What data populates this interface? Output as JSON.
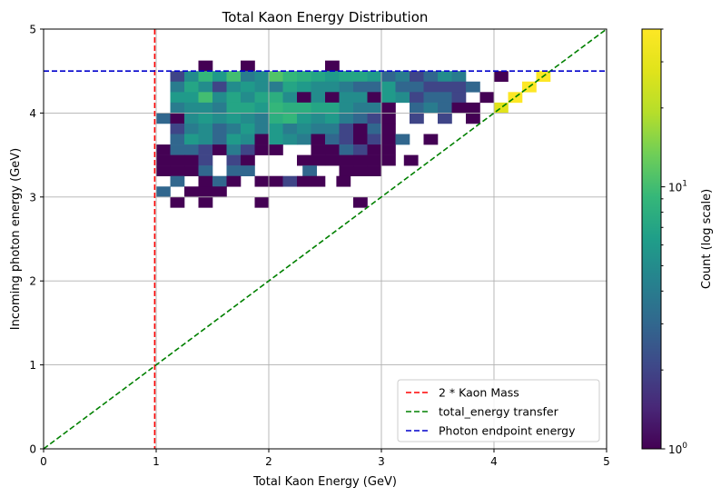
{
  "chart_data": {
    "type": "heatmap",
    "title": "Total Kaon Energy Distribution",
    "xlabel": "Total Kaon Energy (GeV)",
    "ylabel": "Incoming photon energy (GeV)",
    "xlim": [
      0,
      5
    ],
    "ylim": [
      0,
      5
    ],
    "xticks": [
      "0",
      "1",
      "2",
      "3",
      "4",
      "5"
    ],
    "yticks": [
      "0",
      "1",
      "2",
      "3",
      "4",
      "5"
    ],
    "grid": true,
    "bin_size": 0.125,
    "colorbar": {
      "label": "Count (log scale)",
      "scale": "log",
      "range": [
        1,
        40
      ],
      "tick_labels": [
        {
          "base": "10",
          "exp": "0",
          "value": 1
        },
        {
          "base": "10",
          "exp": "1",
          "value": 10
        }
      ],
      "colormap": "viridis"
    },
    "reference_lines": [
      {
        "label": "2 * Kaon Mass",
        "kind": "vertical",
        "x": 0.987,
        "color": "#ff0000",
        "style": "dashed"
      },
      {
        "label": "total_energy transfer",
        "kind": "diagonal",
        "from": [
          0,
          0
        ],
        "to": [
          5,
          5
        ],
        "color": "#008000",
        "style": "dashed"
      },
      {
        "label": "Photon endpoint energy",
        "kind": "horizontal",
        "y": 4.5,
        "color": "#0000cc",
        "style": "dashed"
      }
    ],
    "legend": {
      "position": "lower right"
    },
    "rows": [
      {
        "y": 4.5625,
        "cells": [
          [
            1.4375,
            1
          ],
          [
            1.8125,
            1
          ],
          [
            2.5625,
            1
          ]
        ]
      },
      {
        "y": 4.4375,
        "cells": [
          [
            1.1875,
            2
          ],
          [
            1.3125,
            5
          ],
          [
            1.4375,
            9
          ],
          [
            1.5625,
            6
          ],
          [
            1.6875,
            10
          ],
          [
            1.8125,
            4
          ],
          [
            1.9375,
            5
          ],
          [
            2.0625,
            11
          ],
          [
            2.1875,
            9
          ],
          [
            2.3125,
            8
          ],
          [
            2.4375,
            7
          ],
          [
            2.5625,
            6
          ],
          [
            2.6875,
            7
          ],
          [
            2.8125,
            7
          ],
          [
            2.9375,
            6
          ],
          [
            3.0625,
            3
          ],
          [
            3.1875,
            4
          ],
          [
            3.3125,
            2
          ],
          [
            3.4375,
            3
          ],
          [
            3.5625,
            5
          ],
          [
            3.6875,
            4
          ],
          [
            4.0625,
            1
          ],
          [
            4.4375,
            40
          ]
        ]
      },
      {
        "y": 4.3125,
        "cells": [
          [
            1.1875,
            4
          ],
          [
            1.3125,
            7
          ],
          [
            1.4375,
            5
          ],
          [
            1.5625,
            2
          ],
          [
            1.6875,
            5
          ],
          [
            1.8125,
            6
          ],
          [
            1.9375,
            5
          ],
          [
            2.0625,
            4
          ],
          [
            2.1875,
            7
          ],
          [
            2.3125,
            6
          ],
          [
            2.4375,
            5
          ],
          [
            2.5625,
            5
          ],
          [
            2.6875,
            4
          ],
          [
            2.8125,
            3
          ],
          [
            2.9375,
            3
          ],
          [
            3.0625,
            6
          ],
          [
            3.1875,
            3
          ],
          [
            3.3125,
            3
          ],
          [
            3.4375,
            2
          ],
          [
            3.5625,
            2
          ],
          [
            3.6875,
            2
          ],
          [
            3.8125,
            3
          ],
          [
            4.3125,
            40
          ]
        ]
      },
      {
        "y": 4.1875,
        "cells": [
          [
            1.1875,
            6
          ],
          [
            1.3125,
            6
          ],
          [
            1.4375,
            10
          ],
          [
            1.5625,
            5
          ],
          [
            1.6875,
            7
          ],
          [
            1.8125,
            5
          ],
          [
            1.9375,
            7
          ],
          [
            2.0625,
            8
          ],
          [
            2.1875,
            5
          ],
          [
            2.3125,
            1
          ],
          [
            2.4375,
            5
          ],
          [
            2.5625,
            1
          ],
          [
            2.6875,
            5
          ],
          [
            2.8125,
            5
          ],
          [
            2.9375,
            1
          ],
          [
            3.0625,
            6
          ],
          [
            3.1875,
            5
          ],
          [
            3.3125,
            2
          ],
          [
            3.4375,
            3
          ],
          [
            3.5625,
            3
          ],
          [
            3.6875,
            2
          ],
          [
            3.9375,
            1
          ],
          [
            4.1875,
            40
          ]
        ]
      },
      {
        "y": 4.0625,
        "cells": [
          [
            1.1875,
            4
          ],
          [
            1.3125,
            5
          ],
          [
            1.4375,
            5
          ],
          [
            1.5625,
            4
          ],
          [
            1.6875,
            7
          ],
          [
            1.8125,
            7
          ],
          [
            1.9375,
            6
          ],
          [
            2.0625,
            9
          ],
          [
            2.1875,
            8
          ],
          [
            2.3125,
            8
          ],
          [
            2.4375,
            7
          ],
          [
            2.5625,
            7
          ],
          [
            2.6875,
            5
          ],
          [
            2.8125,
            4
          ],
          [
            2.9375,
            4
          ],
          [
            3.0625,
            1
          ],
          [
            3.3125,
            3
          ],
          [
            3.4375,
            4
          ],
          [
            3.5625,
            3
          ],
          [
            3.6875,
            1
          ],
          [
            3.8125,
            1
          ],
          [
            4.0625,
            28
          ]
        ]
      },
      {
        "y": 3.9375,
        "cells": [
          [
            1.0625,
            3
          ],
          [
            1.1875,
            1
          ],
          [
            1.3125,
            5
          ],
          [
            1.4375,
            6
          ],
          [
            1.5625,
            5
          ],
          [
            1.6875,
            6
          ],
          [
            1.8125,
            5
          ],
          [
            1.9375,
            4
          ],
          [
            2.0625,
            8
          ],
          [
            2.1875,
            9
          ],
          [
            2.3125,
            6
          ],
          [
            2.4375,
            5
          ],
          [
            2.5625,
            6
          ],
          [
            2.6875,
            4
          ],
          [
            2.8125,
            3
          ],
          [
            2.9375,
            2
          ],
          [
            3.0625,
            1
          ],
          [
            3.3125,
            2
          ],
          [
            3.5625,
            2
          ],
          [
            3.8125,
            1
          ]
        ]
      },
      {
        "y": 3.8125,
        "cells": [
          [
            1.1875,
            2
          ],
          [
            1.3125,
            4
          ],
          [
            1.4375,
            5
          ],
          [
            1.5625,
            3
          ],
          [
            1.6875,
            4
          ],
          [
            1.8125,
            6
          ],
          [
            1.9375,
            4
          ],
          [
            2.0625,
            6
          ],
          [
            2.1875,
            4
          ],
          [
            2.3125,
            5
          ],
          [
            2.4375,
            4
          ],
          [
            2.5625,
            4
          ],
          [
            2.6875,
            2
          ],
          [
            2.8125,
            1
          ],
          [
            2.9375,
            3
          ],
          [
            3.0625,
            1
          ]
        ]
      },
      {
        "y": 3.6875,
        "cells": [
          [
            1.1875,
            3
          ],
          [
            1.3125,
            6
          ],
          [
            1.4375,
            5
          ],
          [
            1.5625,
            3
          ],
          [
            1.6875,
            6
          ],
          [
            1.8125,
            5
          ],
          [
            1.9375,
            1
          ],
          [
            2.0625,
            6
          ],
          [
            2.1875,
            5
          ],
          [
            2.3125,
            4
          ],
          [
            2.4375,
            1
          ],
          [
            2.5625,
            3
          ],
          [
            2.6875,
            2
          ],
          [
            2.8125,
            1
          ],
          [
            2.9375,
            2
          ],
          [
            3.0625,
            1
          ],
          [
            3.1875,
            3
          ],
          [
            3.4375,
            1
          ]
        ]
      },
      {
        "y": 3.5625,
        "cells": [
          [
            1.0625,
            1
          ],
          [
            1.1875,
            3
          ],
          [
            1.3125,
            3
          ],
          [
            1.4375,
            2
          ],
          [
            1.5625,
            1
          ],
          [
            1.6875,
            4
          ],
          [
            1.8125,
            2
          ],
          [
            1.9375,
            1
          ],
          [
            2.0625,
            1
          ],
          [
            2.4375,
            1
          ],
          [
            2.5625,
            1
          ],
          [
            2.6875,
            3
          ],
          [
            2.8125,
            2
          ],
          [
            2.9375,
            1
          ],
          [
            3.0625,
            1
          ]
        ]
      },
      {
        "y": 3.4375,
        "cells": [
          [
            1.0625,
            1
          ],
          [
            1.1875,
            1
          ],
          [
            1.3125,
            1
          ],
          [
            1.4375,
            2
          ],
          [
            1.6875,
            2
          ],
          [
            1.8125,
            1
          ],
          [
            2.3125,
            1
          ],
          [
            2.4375,
            1
          ],
          [
            2.5625,
            1
          ],
          [
            2.6875,
            1
          ],
          [
            2.8125,
            1
          ],
          [
            2.9375,
            1
          ],
          [
            3.0625,
            1
          ],
          [
            3.2625,
            1
          ]
        ]
      },
      {
        "y": 3.3125,
        "cells": [
          [
            1.0625,
            1
          ],
          [
            1.1875,
            1
          ],
          [
            1.3125,
            1
          ],
          [
            1.4375,
            3
          ],
          [
            1.6875,
            3
          ],
          [
            1.8125,
            3
          ],
          [
            2.3625,
            3
          ],
          [
            2.6875,
            1
          ],
          [
            2.8125,
            1
          ],
          [
            2.9375,
            1
          ]
        ]
      },
      {
        "y": 3.1875,
        "cells": [
          [
            1.1875,
            3
          ],
          [
            1.4375,
            1
          ],
          [
            1.5625,
            3
          ],
          [
            1.6875,
            1
          ],
          [
            1.9375,
            1
          ],
          [
            2.0625,
            1
          ],
          [
            2.1875,
            2
          ],
          [
            2.3125,
            1
          ],
          [
            2.4375,
            1
          ],
          [
            2.6625,
            1
          ]
        ]
      },
      {
        "y": 3.0625,
        "cells": [
          [
            1.0625,
            3
          ],
          [
            1.3125,
            1
          ],
          [
            1.4375,
            1
          ],
          [
            1.5625,
            1
          ]
        ]
      },
      {
        "y": 2.9375,
        "cells": [
          [
            1.1875,
            1
          ],
          [
            1.4375,
            1
          ],
          [
            1.9375,
            1
          ],
          [
            2.8125,
            1
          ]
        ]
      }
    ]
  }
}
